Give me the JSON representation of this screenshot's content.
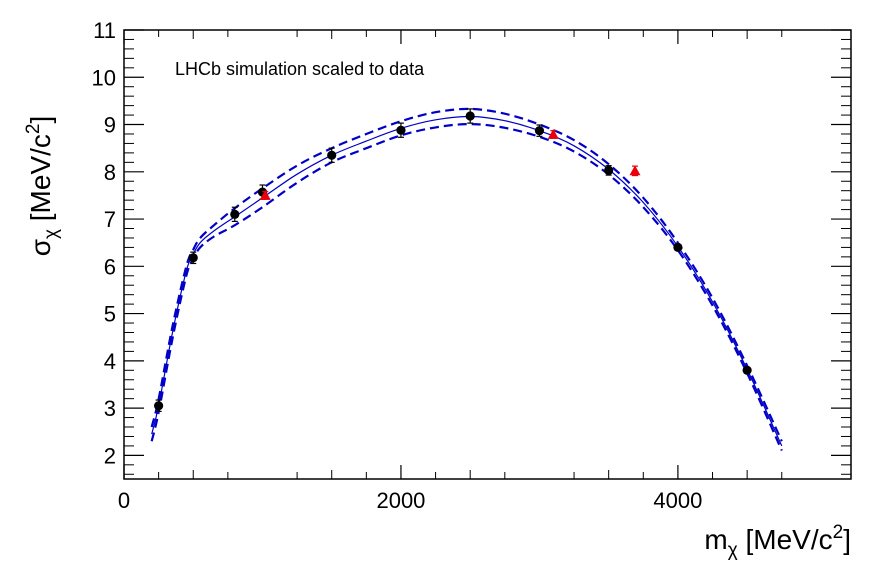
{
  "chart_data": {
    "type": "scatter",
    "annotation": "LHCb simulation scaled to data",
    "xlabel": {
      "base": "m",
      "sub": "χ",
      "unit": " [MeV/c",
      "sup": "2",
      "close": "]"
    },
    "ylabel": {
      "base": "σ",
      "sub": "χ",
      "unit": " [MeV/c",
      "sup": "2",
      "close": "]"
    },
    "xlim": [
      0,
      5250
    ],
    "ylim": [
      1.5,
      11
    ],
    "x_ticks": [
      0,
      2000,
      4000
    ],
    "x_tick_labels": [
      "0",
      "2000",
      "4000"
    ],
    "y_ticks": [
      2,
      3,
      4,
      5,
      6,
      7,
      8,
      9,
      10,
      11
    ],
    "y_tick_labels": [
      "2",
      "3",
      "4",
      "5",
      "6",
      "7",
      "8",
      "9",
      "10",
      "11"
    ],
    "grid": false,
    "colors": {
      "points": "#000000",
      "triangles": "#e8000b",
      "curve": "#0000c8"
    },
    "series": [
      {
        "marker": "circle",
        "x": [
          250,
          500,
          800,
          1000,
          1500,
          2000,
          2500,
          3000,
          3500,
          4000,
          4500
        ],
        "y": [
          3.05,
          6.18,
          7.1,
          7.57,
          8.35,
          8.88,
          9.18,
          8.87,
          8.03,
          6.4,
          3.8
        ],
        "yerr": [
          0.12,
          0.12,
          0.15,
          0.15,
          0.15,
          0.15,
          0.15,
          0.12,
          0.1,
          0.06,
          0.06
        ]
      },
      {
        "marker": "triangle",
        "x": [
          1020,
          3100,
          3690
        ],
        "y": [
          7.5,
          8.79,
          8.02
        ],
        "yerr": [
          0.08,
          0.08,
          0.1
        ]
      }
    ],
    "fit_curve": {
      "x": [
        200,
        250,
        350,
        450,
        500,
        550,
        650,
        800,
        1000,
        1250,
        1500,
        1750,
        2000,
        2250,
        2500,
        2750,
        3000,
        3250,
        3500,
        3750,
        4000,
        4250,
        4500,
        4750
      ],
      "y": [
        2.45,
        3.05,
        4.6,
        5.9,
        6.25,
        6.5,
        6.75,
        7.05,
        7.45,
        7.95,
        8.35,
        8.65,
        8.92,
        9.1,
        9.17,
        9.08,
        8.87,
        8.55,
        8.05,
        7.35,
        6.42,
        5.25,
        3.82,
        2.2
      ],
      "band": [
        0.15,
        0.14,
        0.13,
        0.1,
        0.1,
        0.1,
        0.12,
        0.18,
        0.2,
        0.18,
        0.15,
        0.15,
        0.15,
        0.16,
        0.16,
        0.15,
        0.13,
        0.12,
        0.11,
        0.1,
        0.08,
        0.08,
        0.08,
        0.1
      ]
    }
  }
}
